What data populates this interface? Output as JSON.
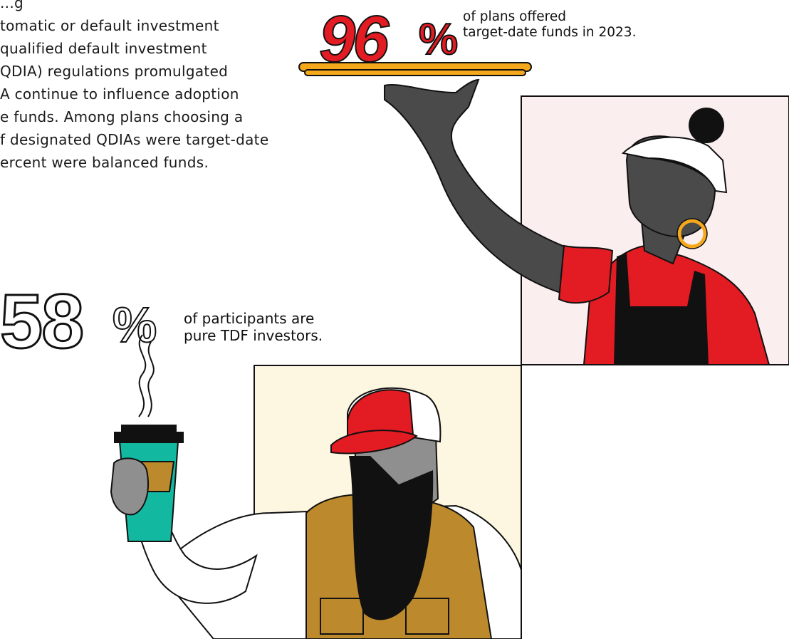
{
  "intro_lines": [
    "...g",
    "tomatic or default investment",
    "qualified default investment",
    "QDIA) regulations promulgated",
    "A continue to influence adoption",
    "e funds. Among plans choosing a",
    "f designated QDIAs were target-date",
    "ercent were balanced funds."
  ],
  "stat_plans": {
    "number": "96",
    "percent": "%",
    "caption_lines": [
      "of plans offered",
      "target-date funds in 2023."
    ]
  },
  "stat_participants": {
    "number": "58",
    "percent": "%",
    "caption_lines": [
      "of participants are",
      "pure TDF investors."
    ]
  },
  "colors": {
    "red": "#e31b23",
    "gold": "#f5a81c",
    "pink_bg": "#fbeeee",
    "cream_bg": "#fdf6e0",
    "teal": "#13b8a0",
    "brown": "#bc8a2c",
    "gray": "#8f8f8f",
    "dark_gray": "#4a4a4a",
    "black": "#111111"
  }
}
